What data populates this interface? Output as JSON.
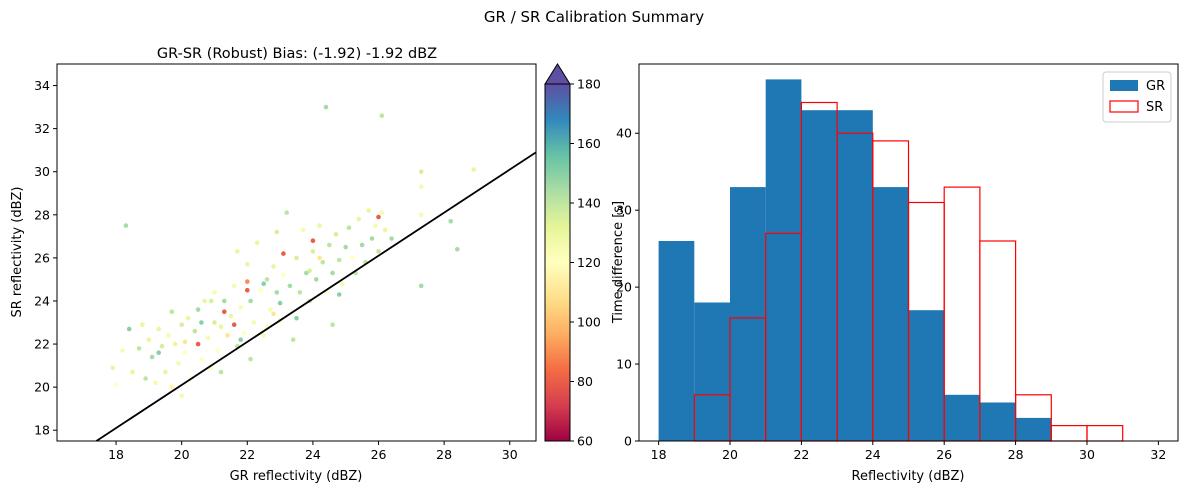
{
  "figure": {
    "suptitle": "GR / SR Calibration Summary"
  },
  "chart_data": [
    {
      "type": "scatter",
      "title": "GR-SR (Robust) Bias: (-1.92) -1.92 dBZ",
      "xlabel": "GR reflectivity (dBZ)",
      "ylabel": "SR reflectivity (dBZ)",
      "xlim": [
        16.2,
        30.8
      ],
      "ylim": [
        17.5,
        35.0
      ],
      "xticks": [
        "18",
        "20",
        "22",
        "24",
        "26",
        "28",
        "30"
      ],
      "yticks": [
        "18",
        "20",
        "22",
        "24",
        "26",
        "28",
        "30",
        "32",
        "34"
      ],
      "reference_line": {
        "x": [
          17.4,
          30.8
        ],
        "y": [
          17.5,
          30.9
        ]
      },
      "colorbar": {
        "label": "Time difference [s]",
        "range": [
          60,
          180
        ],
        "ticks": [
          "60",
          "80",
          "100",
          "120",
          "140",
          "160",
          "180"
        ],
        "colormap": "Spectral",
        "extend": "max"
      },
      "points": [
        [
          18.3,
          27.5,
          145
        ],
        [
          24.4,
          33.0,
          145
        ],
        [
          26.1,
          32.6,
          140
        ],
        [
          27.3,
          30.0,
          135
        ],
        [
          28.9,
          30.1,
          130
        ],
        [
          27.3,
          29.3,
          125
        ],
        [
          28.2,
          27.7,
          145
        ],
        [
          28.4,
          26.4,
          145
        ],
        [
          27.3,
          24.7,
          145
        ],
        [
          24.6,
          22.9,
          140
        ],
        [
          26.0,
          27.9,
          80
        ],
        [
          24.0,
          26.8,
          80
        ],
        [
          23.1,
          26.2,
          80
        ],
        [
          22.0,
          24.5,
          80
        ],
        [
          21.3,
          23.5,
          80
        ],
        [
          20.5,
          22.0,
          80
        ],
        [
          21.6,
          22.9,
          80
        ],
        [
          22.0,
          24.9,
          90
        ],
        [
          17.9,
          20.9,
          130
        ],
        [
          18.0,
          20.1,
          120
        ],
        [
          18.2,
          21.7,
          125
        ],
        [
          18.5,
          20.7,
          130
        ],
        [
          18.7,
          21.8,
          140
        ],
        [
          18.8,
          22.9,
          130
        ],
        [
          18.9,
          20.4,
          140
        ],
        [
          19.0,
          22.2,
          130
        ],
        [
          19.1,
          21.4,
          145
        ],
        [
          19.2,
          20.2,
          125
        ],
        [
          19.3,
          22.7,
          130
        ],
        [
          19.4,
          21.9,
          135
        ],
        [
          19.5,
          20.7,
          130
        ],
        [
          19.6,
          22.4,
          125
        ],
        [
          19.7,
          23.5,
          140
        ],
        [
          19.8,
          22.0,
          130
        ],
        [
          19.9,
          21.1,
          125
        ],
        [
          20.0,
          19.6,
          125
        ],
        [
          20.0,
          22.9,
          135
        ],
        [
          20.1,
          21.6,
          120
        ],
        [
          20.2,
          23.2,
          130
        ],
        [
          20.3,
          20.4,
          120
        ],
        [
          20.4,
          22.6,
          140
        ],
        [
          20.5,
          23.6,
          145
        ],
        [
          20.6,
          21.3,
          120
        ],
        [
          20.7,
          24.0,
          130
        ],
        [
          20.8,
          22.3,
          125
        ],
        [
          20.9,
          20.9,
          120
        ],
        [
          21.0,
          23.0,
          135
        ],
        [
          21.0,
          24.4,
          125
        ],
        [
          21.1,
          21.7,
          120
        ],
        [
          21.2,
          22.8,
          130
        ],
        [
          21.3,
          24.0,
          145
        ],
        [
          21.4,
          22.4,
          120
        ],
        [
          21.5,
          23.3,
          130
        ],
        [
          21.6,
          24.7,
          125
        ],
        [
          21.7,
          21.9,
          140
        ],
        [
          21.8,
          23.7,
          125
        ],
        [
          21.9,
          22.5,
          120
        ],
        [
          22.0,
          25.7,
          130
        ],
        [
          22.1,
          24.0,
          145
        ],
        [
          22.2,
          23.0,
          125
        ],
        [
          22.3,
          26.7,
          130
        ],
        [
          22.4,
          24.5,
          120
        ],
        [
          22.5,
          22.4,
          125
        ],
        [
          22.6,
          25.0,
          140
        ],
        [
          22.7,
          23.6,
          125
        ],
        [
          22.8,
          25.6,
          130
        ],
        [
          22.9,
          24.4,
          145
        ],
        [
          23.0,
          23.1,
          125
        ],
        [
          23.1,
          25.2,
          120
        ],
        [
          23.2,
          28.1,
          140
        ],
        [
          23.3,
          24.7,
          145
        ],
        [
          23.4,
          22.2,
          140
        ],
        [
          23.5,
          26.0,
          135
        ],
        [
          23.6,
          24.4,
          140
        ],
        [
          23.7,
          27.3,
          125
        ],
        [
          23.8,
          25.3,
          145
        ],
        [
          23.9,
          24.0,
          140
        ],
        [
          24.0,
          26.3,
          135
        ],
        [
          24.1,
          25.0,
          145
        ],
        [
          24.2,
          27.5,
          130
        ],
        [
          24.3,
          25.8,
          140
        ],
        [
          24.4,
          24.4,
          120
        ],
        [
          24.5,
          26.6,
          140
        ],
        [
          24.6,
          25.3,
          145
        ],
        [
          24.7,
          27.1,
          135
        ],
        [
          24.8,
          25.9,
          140
        ],
        [
          24.9,
          24.8,
          125
        ],
        [
          25.0,
          26.5,
          145
        ],
        [
          25.1,
          27.4,
          140
        ],
        [
          25.2,
          26.0,
          120
        ],
        [
          25.3,
          25.3,
          140
        ],
        [
          25.4,
          27.8,
          130
        ],
        [
          25.5,
          26.6,
          145
        ],
        [
          25.6,
          25.8,
          140
        ],
        [
          25.7,
          28.2,
          130
        ],
        [
          25.8,
          26.9,
          145
        ],
        [
          25.9,
          27.5,
          125
        ],
        [
          26.0,
          26.3,
          140
        ],
        [
          26.1,
          28.1,
          125
        ],
        [
          26.2,
          27.3,
          130
        ],
        [
          26.4,
          26.9,
          145
        ],
        [
          27.3,
          28.0,
          125
        ],
        [
          19.7,
          20.0,
          115
        ],
        [
          20.1,
          22.1,
          110
        ],
        [
          21.4,
          22.4,
          110
        ],
        [
          22.8,
          23.4,
          110
        ],
        [
          24.2,
          26.0,
          110
        ],
        [
          23.0,
          23.9,
          150
        ],
        [
          22.5,
          24.8,
          150
        ],
        [
          21.8,
          22.2,
          150
        ],
        [
          20.6,
          23.0,
          150
        ],
        [
          23.5,
          23.2,
          150
        ],
        [
          24.8,
          24.3,
          150
        ],
        [
          21.2,
          20.7,
          140
        ],
        [
          19.3,
          21.6,
          150
        ],
        [
          22.1,
          21.3,
          140
        ],
        [
          20.9,
          24.0,
          135
        ],
        [
          22.6,
          22.8,
          120
        ],
        [
          23.9,
          25.4,
          135
        ],
        [
          21.7,
          26.3,
          130
        ],
        [
          18.4,
          22.7,
          150
        ],
        [
          22.9,
          27.2,
          135
        ]
      ]
    },
    {
      "type": "bar",
      "title": "",
      "xlabel": "Reflectivity (dBZ)",
      "ylabel": "",
      "xlim": [
        17.45,
        32.55
      ],
      "ylim": [
        0,
        49
      ],
      "xticks": [
        "18",
        "20",
        "22",
        "24",
        "26",
        "28",
        "30",
        "32"
      ],
      "yticks": [
        "0",
        "10",
        "20",
        "30",
        "40"
      ],
      "bin_edges": [
        18,
        19,
        20,
        21,
        22,
        23,
        24,
        25,
        26,
        27,
        28,
        29,
        30,
        31
      ],
      "legend_position": "upper-right",
      "series": [
        {
          "name": "GR",
          "values": [
            26,
            18,
            33,
            47,
            43,
            43,
            33,
            17,
            6,
            5,
            3,
            0,
            0
          ],
          "color": "#1f77b4",
          "style": "filled"
        },
        {
          "name": "SR",
          "values": [
            0,
            6,
            16,
            27,
            44,
            40,
            39,
            31,
            33,
            26,
            6,
            2,
            2
          ],
          "color": "#ff0000",
          "style": "outline"
        }
      ]
    }
  ]
}
